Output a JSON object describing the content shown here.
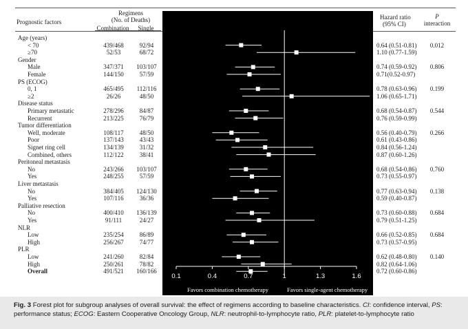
{
  "header": {
    "factor_label": "Prognostic factors",
    "regimens_title": "Regimens",
    "regimens_sub": "(No. of Deaths)",
    "combination": "Combination",
    "single": "Single",
    "hr_title": "Hazard ratio",
    "ci_label": "(95% CI)",
    "p_label": "P",
    "interaction": "interaction"
  },
  "rows": [
    {
      "kind": "group",
      "label": "Age (years)"
    },
    {
      "kind": "sub",
      "label": "< 70",
      "comb": "439/468",
      "single": "92/94",
      "hr_text": "0.64 (0.51-0.81)",
      "p": "0.012",
      "hr": 0.64,
      "lo": 0.51,
      "hi": 0.81
    },
    {
      "kind": "sub",
      "label": "≥70",
      "comb": "52/53",
      "single": "68/72",
      "hr_text": "1.10 (0.77-1.59)",
      "p": "",
      "hr": 1.1,
      "lo": 0.77,
      "hi": 1.59
    },
    {
      "kind": "group",
      "label": "Gender"
    },
    {
      "kind": "sub",
      "label": "Male",
      "comb": "347/371",
      "single": "103/107",
      "hr_text": "0.74 (0.59-0.92)",
      "p": "0.806",
      "hr": 0.74,
      "lo": 0.59,
      "hi": 0.92
    },
    {
      "kind": "sub",
      "label": "Female",
      "comb": "144/150",
      "single": "57/59",
      "hr_text": "0.71(0.52-0.97)",
      "p": "",
      "hr": 0.71,
      "lo": 0.52,
      "hi": 0.97
    },
    {
      "kind": "group",
      "label": "PS (ECOG)"
    },
    {
      "kind": "sub",
      "label": "0, 1",
      "comb": "465/495",
      "single": "112/116",
      "hr_text": "0.78 (0.63-0.96)",
      "p": "0.199",
      "hr": 0.78,
      "lo": 0.63,
      "hi": 0.96
    },
    {
      "kind": "sub",
      "label": "≥2",
      "comb": "26/26",
      "single": "48/50",
      "hr_text": "1.06 (0.65-1.71)",
      "p": "",
      "hr": 1.06,
      "lo": 0.65,
      "hi": 1.71
    },
    {
      "kind": "group",
      "label": "Disease status"
    },
    {
      "kind": "sub",
      "label": "Primary metastatic",
      "comb": "278/296",
      "single": "84/87",
      "hr_text": "0.68 (0.54-0.87)",
      "p": "0.544",
      "hr": 0.68,
      "lo": 0.54,
      "hi": 0.87
    },
    {
      "kind": "sub",
      "label": "Recurrent",
      "comb": "213/225",
      "single": "76/79",
      "hr_text": "0.76 (0.59-0.99)",
      "p": "",
      "hr": 0.76,
      "lo": 0.59,
      "hi": 0.99
    },
    {
      "kind": "group",
      "label": "Tumor differentiation"
    },
    {
      "kind": "sub",
      "label": "Well, moderate",
      "comb": "108/117",
      "single": "48/50",
      "hr_text": "0.56 (0.40-0.79)",
      "p": "0.266",
      "hr": 0.56,
      "lo": 0.4,
      "hi": 0.79
    },
    {
      "kind": "sub",
      "label": "Poor",
      "comb": "137/143",
      "single": "43/43",
      "hr_text": "0.61 (0.43-0.86)",
      "p": "",
      "hr": 0.61,
      "lo": 0.43,
      "hi": 0.86
    },
    {
      "kind": "sub",
      "label": "Signet ring cell",
      "comb": "134/139",
      "single": "31/32",
      "hr_text": "0.84 (0.56-1.24)",
      "p": "",
      "hr": 0.84,
      "lo": 0.56,
      "hi": 1.24
    },
    {
      "kind": "sub",
      "label": "Combined, others",
      "comb": "112/122",
      "single": "38/41",
      "hr_text": "0.87 (0.60-1.26)",
      "p": "",
      "hr": 0.87,
      "lo": 0.6,
      "hi": 1.26
    },
    {
      "kind": "group",
      "label": "Peritoneal metastasis"
    },
    {
      "kind": "sub",
      "label": "No",
      "comb": "243/266",
      "single": "103/107",
      "hr_text": "0.68 (0.54-0.86)",
      "p": "0.760",
      "hr": 0.68,
      "lo": 0.54,
      "hi": 0.86
    },
    {
      "kind": "sub",
      "label": "Yes",
      "comb": "248/255",
      "single": "57/59",
      "hr_text": "0.73 (0.55-0.97)",
      "p": "",
      "hr": 0.73,
      "lo": 0.55,
      "hi": 0.97
    },
    {
      "kind": "group",
      "label": "Liver metastasis"
    },
    {
      "kind": "sub",
      "label": "No",
      "comb": "384/405",
      "single": "124/130",
      "hr_text": "0.77 (0.63-0.94)",
      "p": "0.138",
      "hr": 0.77,
      "lo": 0.63,
      "hi": 0.94
    },
    {
      "kind": "sub",
      "label": "Yes",
      "comb": "107/116",
      "single": "36/36",
      "hr_text": "0.59 (0.40-0.87)",
      "p": "",
      "hr": 0.59,
      "lo": 0.4,
      "hi": 0.87
    },
    {
      "kind": "group",
      "label": "Palliative resection"
    },
    {
      "kind": "sub",
      "label": "No",
      "comb": "400/410",
      "single": "136/139",
      "hr_text": "0.73 (0.60-0.88)",
      "p": "0.684",
      "hr": 0.73,
      "lo": 0.6,
      "hi": 0.88
    },
    {
      "kind": "sub",
      "label": "Yes",
      "comb": "91/111",
      "single": "24/27",
      "hr_text": "0.79 (0.51-1.25)",
      "p": "",
      "hr": 0.79,
      "lo": 0.51,
      "hi": 1.25
    },
    {
      "kind": "group",
      "label": "NLR"
    },
    {
      "kind": "sub",
      "label": "Low",
      "comb": "235/254",
      "single": "86/89",
      "hr_text": "0.66 (0.52-0.85)",
      "p": "0.684",
      "hr": 0.66,
      "lo": 0.52,
      "hi": 0.85
    },
    {
      "kind": "sub",
      "label": "High",
      "comb": "256/267",
      "single": "74/77",
      "hr_text": "0.73 (0.57-0.95)",
      "p": "",
      "hr": 0.73,
      "lo": 0.57,
      "hi": 0.95
    },
    {
      "kind": "group",
      "label": "PLR"
    },
    {
      "kind": "sub",
      "label": "Low",
      "comb": "241/260",
      "single": "82/84",
      "hr_text": "0.62 (0.48-0.80)",
      "p": "0.140",
      "hr": 0.62,
      "lo": 0.48,
      "hi": 0.8
    },
    {
      "kind": "sub",
      "label": "High",
      "comb": "250/261",
      "single": "78/82",
      "hr_text": "0.82 (0.64-1.06)",
      "p": "",
      "hr": 0.82,
      "lo": 0.64,
      "hi": 1.06
    },
    {
      "kind": "overall",
      "label": "Overall",
      "comb": "491/521",
      "single": "160/166",
      "hr_text": "0.72 (0.60-0.86)",
      "p": "",
      "hr": 0.72,
      "lo": 0.6,
      "hi": 0.86
    }
  ],
  "chart_data": {
    "type": "forest",
    "x_ticks": [
      "0.1",
      "0.4",
      "0.7",
      "1",
      "1.3",
      "1.6"
    ],
    "xlim": [
      0.1,
      1.6
    ],
    "reference_line": 1,
    "favors_left": "Favors combination chemotherapy",
    "favors_right": "Favors single-agent chemotherapy",
    "plot_background": "#000000",
    "mark_color": "#ffffff"
  },
  "caption": {
    "lead": "Fig. 3",
    "text": " Forest plot for subgroup analyses of overall survival: the effect of regimens according to baseline characteristics. ",
    "ci_abbr": "CI",
    "ci_def": ": confidence interval, ",
    "ps_abbr": "PS",
    "ps_def": ": performance status; ",
    "ecog_abbr": "ECOG",
    "ecog_def": ": Eastern Cooperative Oncology Group, ",
    "nlr_abbr": "NLR",
    "nlr_def": ": neutrophil-to-lymphocyte ratio, ",
    "plr_abbr": "PLR",
    "plr_def": ": platelet-to-lymphocyte ratio"
  }
}
